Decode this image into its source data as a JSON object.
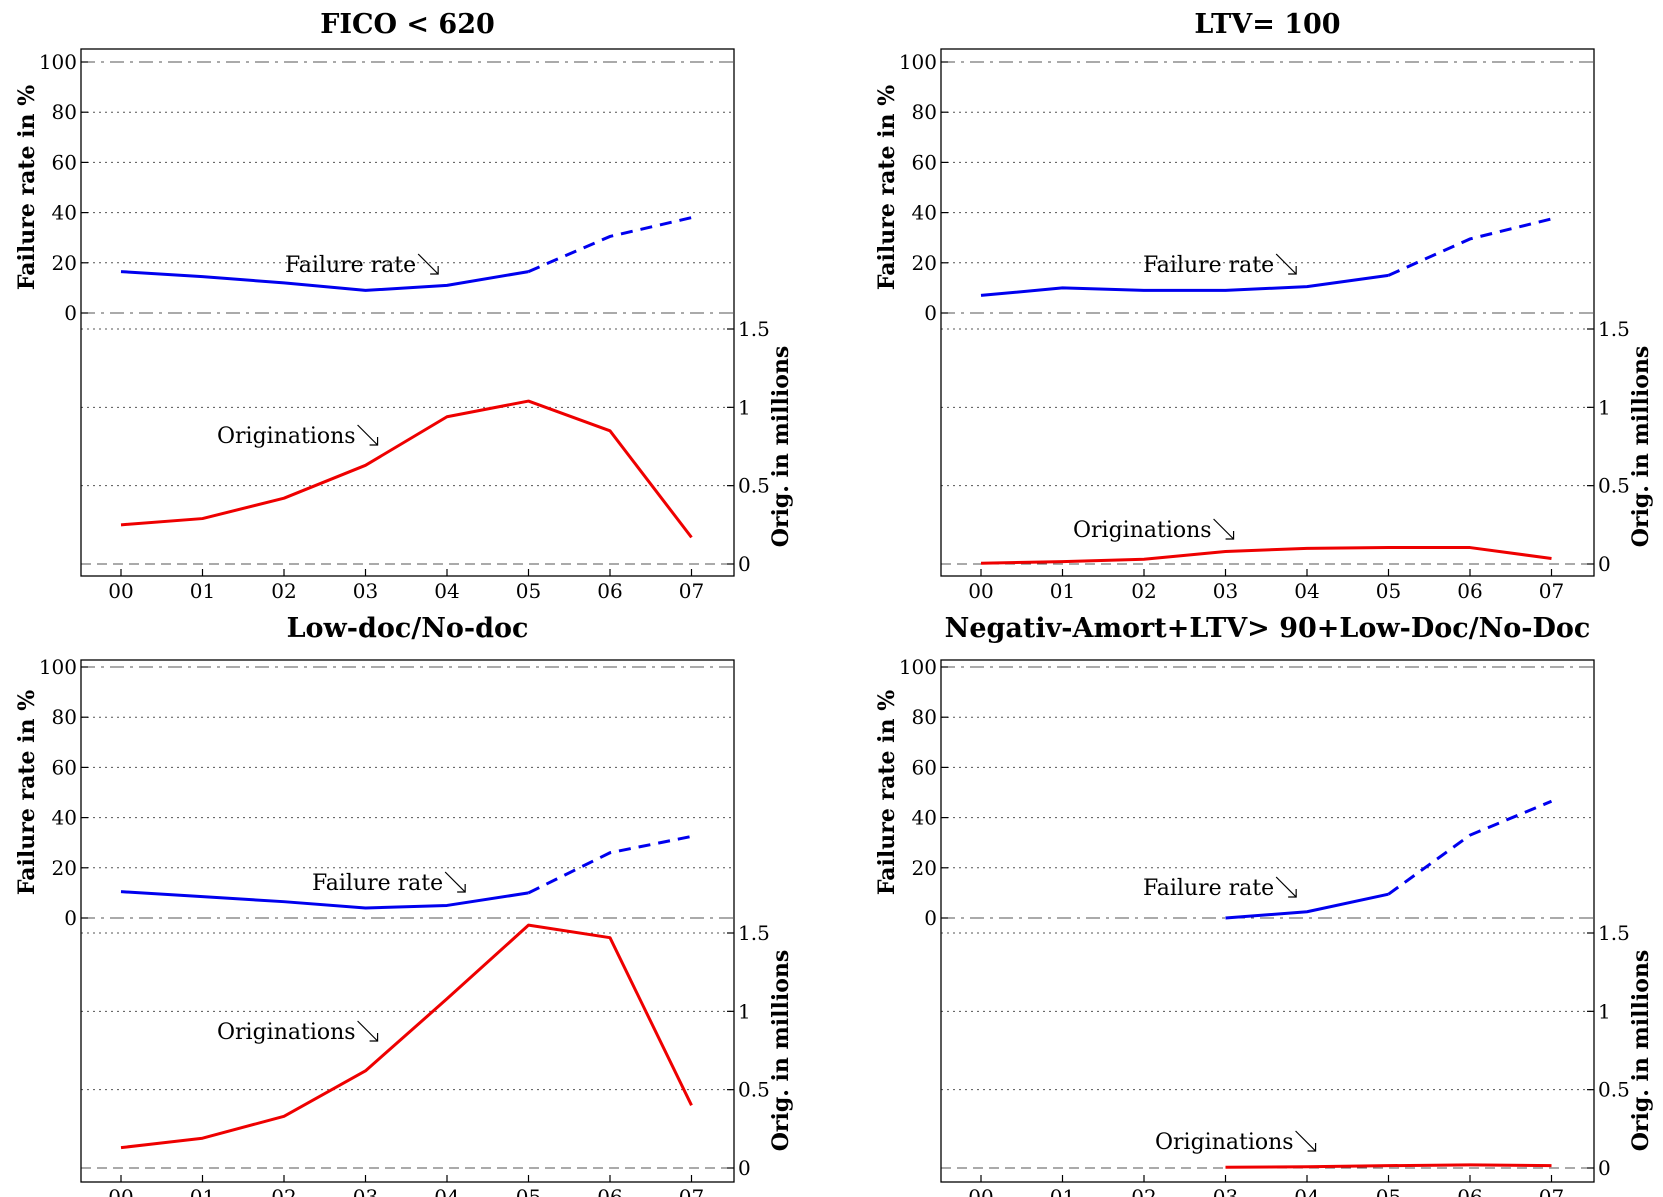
{
  "chart_data": [
    {
      "type": "line",
      "title": "FICO < 620",
      "categories": [
        "00",
        "01",
        "02",
        "03",
        "04",
        "05",
        "06",
        "07"
      ],
      "left_axis": {
        "label": "Failure rate in %",
        "ylim": [
          0,
          100
        ],
        "ticks": [
          "0",
          "20",
          "40",
          "60",
          "80",
          "100"
        ]
      },
      "right_axis": {
        "label": "Orig. in millions",
        "ylim": [
          0,
          1.5
        ],
        "ticks": [
          "0",
          "0.5",
          "1",
          "1.5"
        ]
      },
      "grid": true,
      "series": [
        {
          "name": "Failure rate",
          "axis": "left",
          "color": "#0000ee",
          "solid_x": [
            "00",
            "01",
            "02",
            "03",
            "04",
            "05"
          ],
          "solid_values": [
            16.5,
            14.5,
            12,
            9,
            11,
            16.5
          ],
          "dashed_x": [
            "05",
            "06",
            "07"
          ],
          "dashed_values": [
            16.5,
            30.5,
            38
          ]
        },
        {
          "name": "Originations",
          "axis": "right",
          "color": "#ee0000",
          "x": [
            "00",
            "01",
            "02",
            "03",
            "04",
            "05",
            "06",
            "07"
          ],
          "values": [
            0.25,
            0.29,
            0.42,
            0.63,
            0.94,
            1.04,
            0.85,
            0.17
          ]
        }
      ]
    },
    {
      "type": "line",
      "title": "LTV= 100",
      "categories": [
        "00",
        "01",
        "02",
        "03",
        "04",
        "05",
        "06",
        "07"
      ],
      "left_axis": {
        "label": "Failure rate in %",
        "ylim": [
          0,
          100
        ],
        "ticks": [
          "0",
          "20",
          "40",
          "60",
          "80",
          "100"
        ]
      },
      "right_axis": {
        "label": "Orig. in millions",
        "ylim": [
          0,
          1.5
        ],
        "ticks": [
          "0",
          "0.5",
          "1",
          "1.5"
        ]
      },
      "grid": true,
      "series": [
        {
          "name": "Failure rate",
          "axis": "left",
          "color": "#0000ee",
          "solid_x": [
            "00",
            "01",
            "02",
            "03",
            "04",
            "05"
          ],
          "solid_values": [
            7,
            10,
            9,
            9,
            10.5,
            15
          ],
          "dashed_x": [
            "05",
            "06",
            "07"
          ],
          "dashed_values": [
            15,
            29.5,
            37.5
          ]
        },
        {
          "name": "Originations",
          "axis": "right",
          "color": "#ee0000",
          "x": [
            "00",
            "01",
            "02",
            "03",
            "04",
            "05",
            "06",
            "07"
          ],
          "values": [
            0.005,
            0.015,
            0.03,
            0.08,
            0.1,
            0.105,
            0.105,
            0.035
          ]
        }
      ]
    },
    {
      "type": "line",
      "title": "Low-doc/No-doc",
      "categories": [
        "00",
        "01",
        "02",
        "03",
        "04",
        "05",
        "06",
        "07"
      ],
      "left_axis": {
        "label": "Failure rate in %",
        "ylim": [
          0,
          100
        ],
        "ticks": [
          "0",
          "20",
          "40",
          "60",
          "80",
          "100"
        ]
      },
      "right_axis": {
        "label": "Orig. in millions",
        "ylim": [
          0,
          1.5
        ],
        "ticks": [
          "0",
          "0.5",
          "1",
          "1.5"
        ]
      },
      "grid": true,
      "series": [
        {
          "name": "Failure rate",
          "axis": "left",
          "color": "#0000ee",
          "solid_x": [
            "00",
            "01",
            "02",
            "03",
            "04",
            "05"
          ],
          "solid_values": [
            10.5,
            8.5,
            6.5,
            4,
            5,
            10
          ],
          "dashed_x": [
            "05",
            "06",
            "07"
          ],
          "dashed_values": [
            10,
            26,
            32.5
          ]
        },
        {
          "name": "Originations",
          "axis": "right",
          "color": "#ee0000",
          "x": [
            "00",
            "01",
            "02",
            "03",
            "04",
            "05",
            "06",
            "07"
          ],
          "values": [
            0.13,
            0.19,
            0.33,
            0.62,
            1.08,
            1.55,
            1.47,
            0.4
          ]
        }
      ]
    },
    {
      "type": "line",
      "title": "Negativ-Amort+LTV> 90+Low-Doc/No-Doc",
      "categories": [
        "00",
        "01",
        "02",
        "03",
        "04",
        "05",
        "06",
        "07"
      ],
      "left_axis": {
        "label": "Failure rate in %",
        "ylim": [
          0,
          100
        ],
        "ticks": [
          "0",
          "20",
          "40",
          "60",
          "80",
          "100"
        ]
      },
      "right_axis": {
        "label": "Orig. in millions",
        "ylim": [
          0,
          1.5
        ],
        "ticks": [
          "0",
          "0.5",
          "1",
          "1.5"
        ]
      },
      "grid": true,
      "series": [
        {
          "name": "Failure rate",
          "axis": "left",
          "color": "#0000ee",
          "solid_x": [
            "03",
            "04",
            "05"
          ],
          "solid_values": [
            0,
            2.5,
            9.5
          ],
          "dashed_x": [
            "05",
            "06",
            "07"
          ],
          "dashed_values": [
            9.5,
            33,
            46.5
          ]
        },
        {
          "name": "Originations",
          "axis": "right",
          "color": "#ee0000",
          "x": [
            "03",
            "04",
            "05",
            "06",
            "07"
          ],
          "values": [
            0.005,
            0.008,
            0.015,
            0.02,
            0.015
          ]
        }
      ]
    }
  ]
}
